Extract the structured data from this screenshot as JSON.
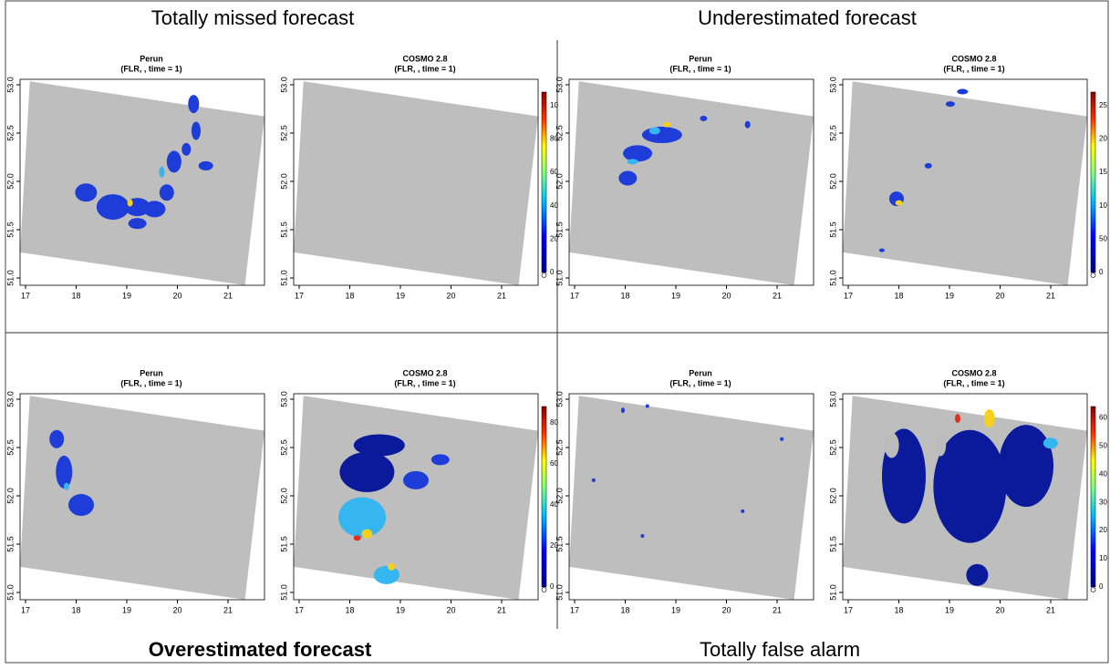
{
  "quadrants": [
    {
      "title": "Totally missed forecast",
      "panels": [
        {
          "title": "Perun",
          "subtitle": "(FLR, , time = 1)"
        },
        {
          "title": "COSMO 2.8",
          "subtitle": "(FLR, , time = 1)",
          "colorbar": [
            "0",
            "20",
            "40",
            "60",
            "80",
            "10"
          ]
        }
      ]
    },
    {
      "title": "Underestimated forecast",
      "panels": [
        {
          "title": "Perun",
          "subtitle": "(FLR, , time = 1)"
        },
        {
          "title": "COSMO 2.8",
          "subtitle": "(FLR, , time = 1)",
          "colorbar": [
            "0",
            "50",
            "10",
            "15",
            "20",
            "25"
          ]
        }
      ]
    },
    {
      "title": "Overestimated forecast",
      "panels": [
        {
          "title": "Perun",
          "subtitle": "(FLR, , time = 1)"
        },
        {
          "title": "COSMO 2.8",
          "subtitle": "(FLR, , time = 1)",
          "colorbar": [
            "0",
            "20",
            "40",
            "60",
            "80"
          ]
        }
      ]
    },
    {
      "title": "Totally false alarm",
      "panels": [
        {
          "title": "Perun",
          "subtitle": "(FLR, , time = 1)"
        },
        {
          "title": "COSMO 2.8",
          "subtitle": "(FLR, , time = 1)",
          "colorbar": [
            "0",
            "10",
            "20",
            "30",
            "40",
            "50",
            "60"
          ]
        }
      ]
    }
  ],
  "x_ticks": [
    "17",
    "18",
    "19",
    "20",
    "21"
  ],
  "y_ticks": [
    "51.0",
    "51.5",
    "52.0",
    "52.5",
    "53.0"
  ]
}
